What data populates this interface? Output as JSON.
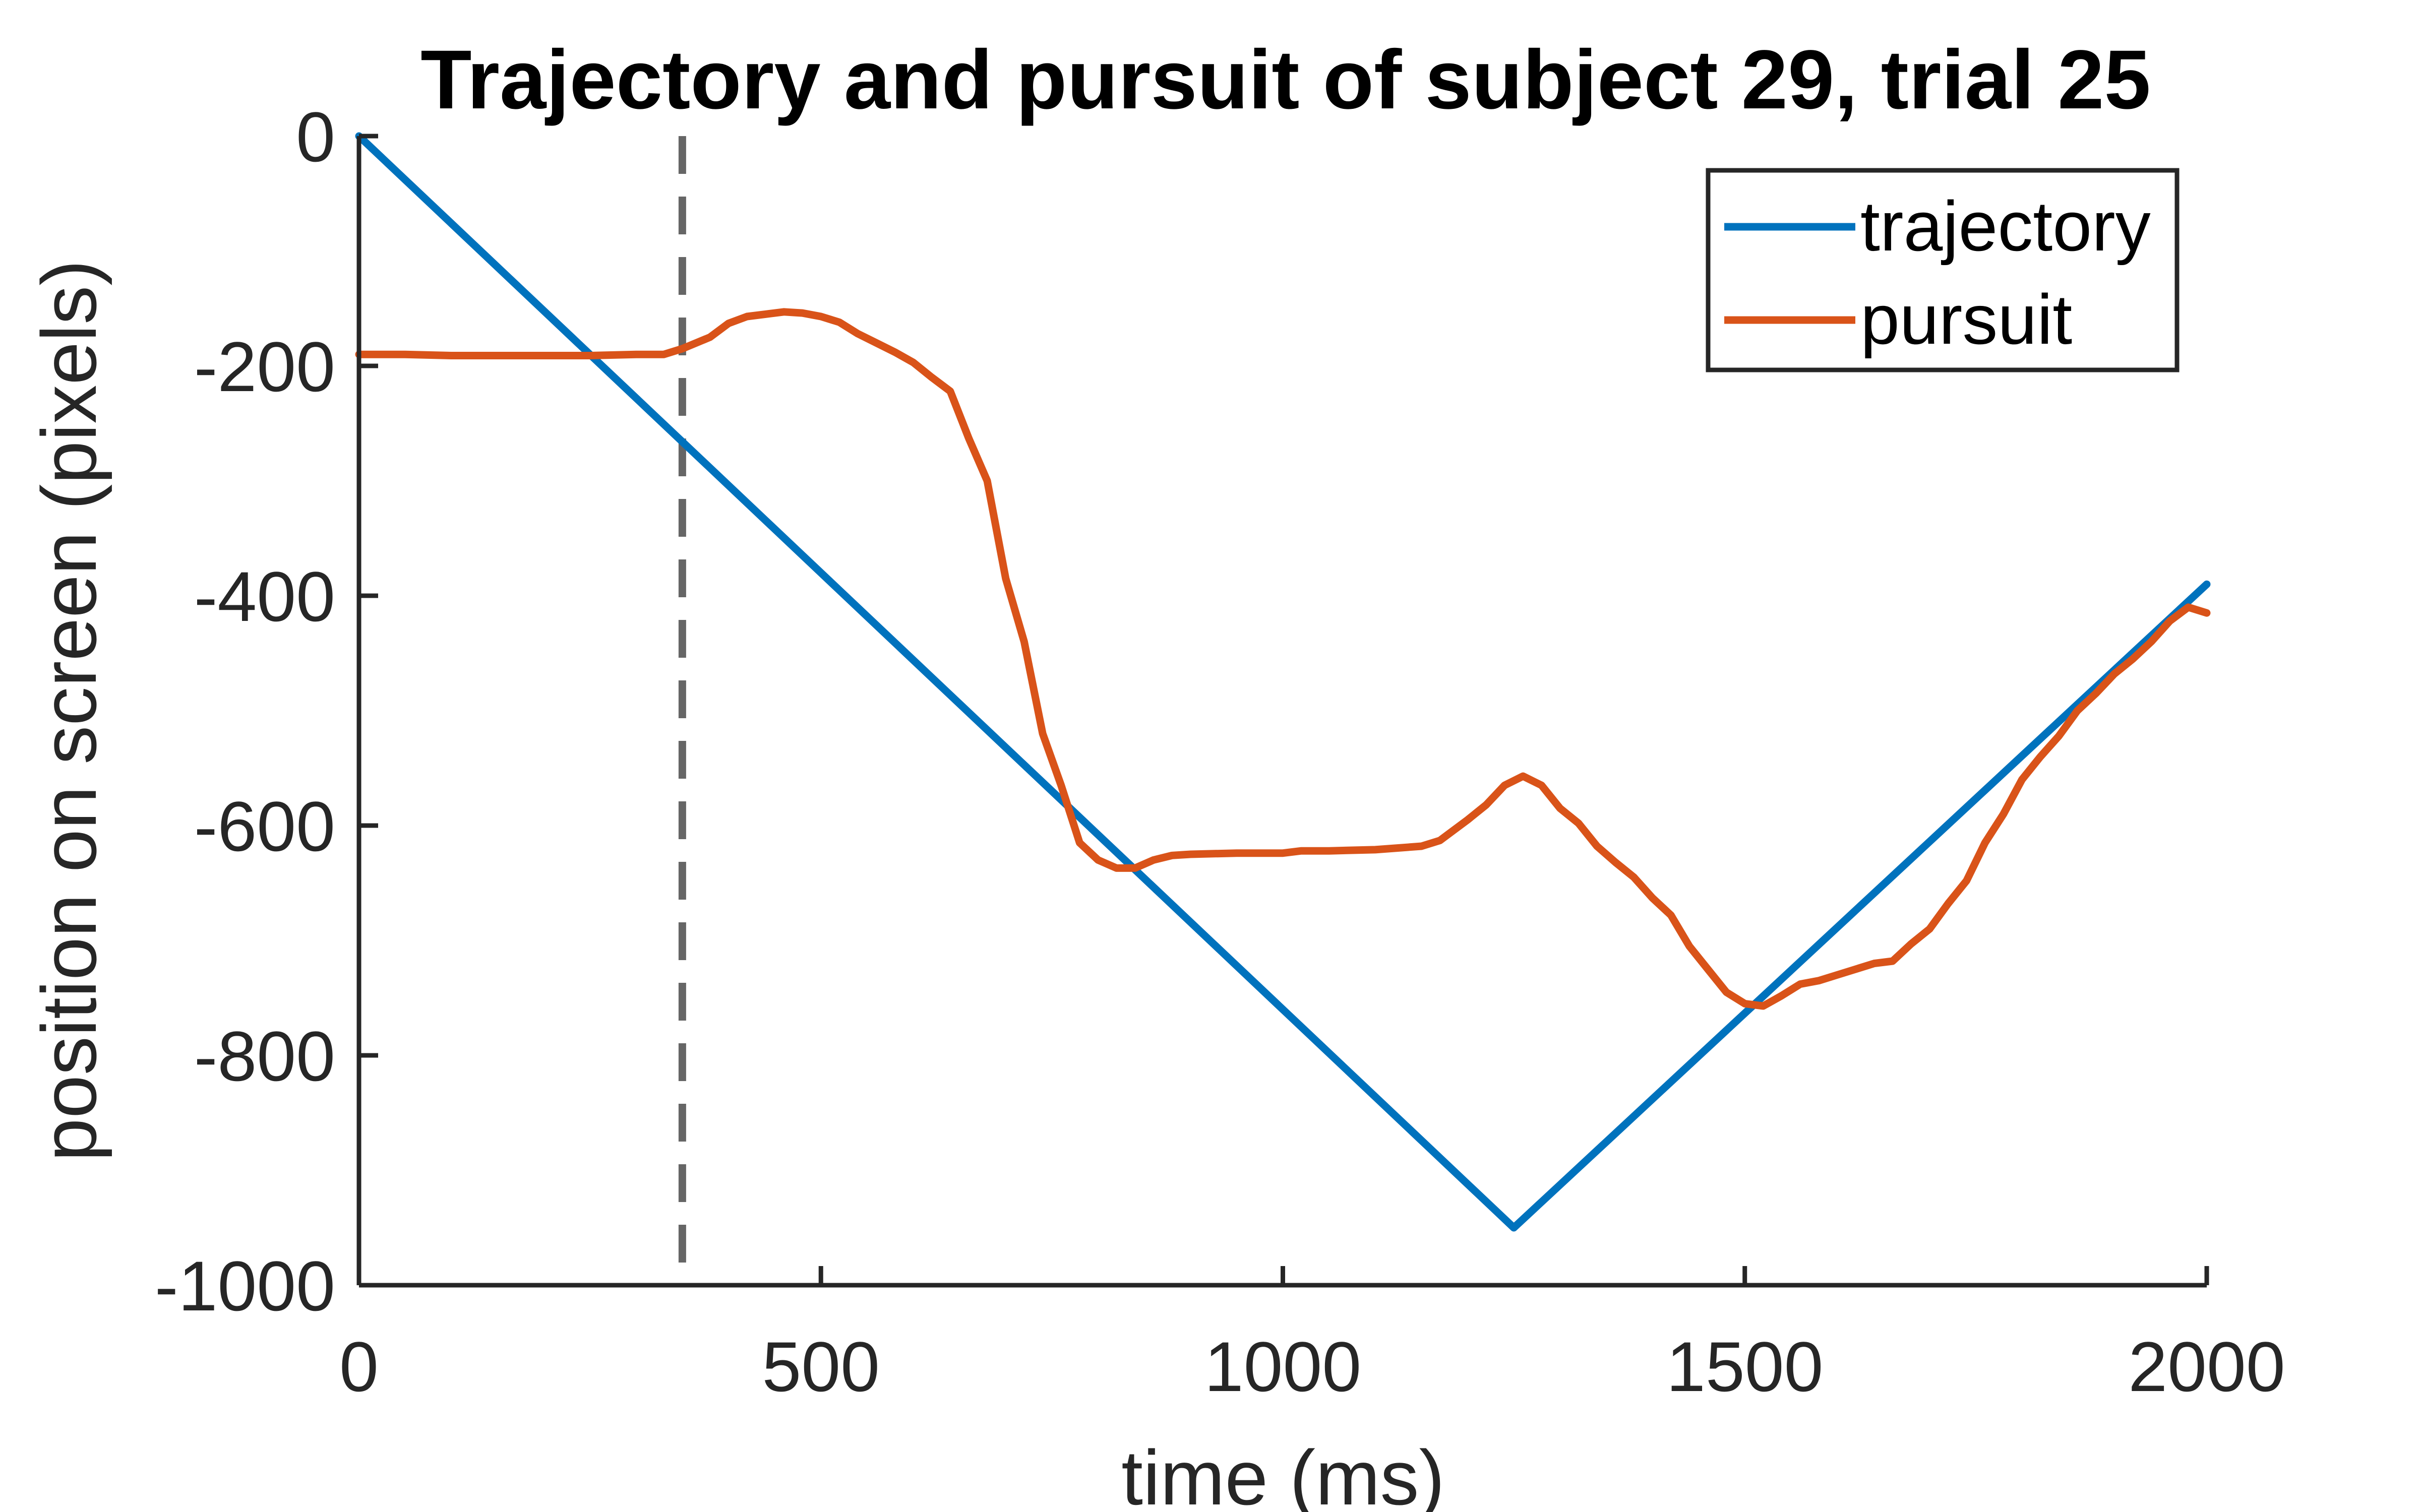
{
  "chart_data": {
    "type": "line",
    "title": "Trajectory and pursuit of subject 29, trial 25",
    "xlabel": "time (ms)",
    "ylabel": "position on screen (pixels)",
    "xlim": [
      0,
      2000
    ],
    "ylim": [
      -1000,
      0
    ],
    "xticks": [
      "0",
      "500",
      "1000",
      "1500",
      "2000"
    ],
    "xtick_values": [
      0,
      500,
      1000,
      1500,
      2000
    ],
    "yticks": [
      "0",
      "-200",
      "-400",
      "-600",
      "-800",
      "-1000"
    ],
    "ytick_values": [
      0,
      -200,
      -400,
      -600,
      -800,
      -1000
    ],
    "grid": false,
    "legend_position": "top-right",
    "vline": {
      "x": 350,
      "style": "dashed",
      "color": "#666666"
    },
    "series": [
      {
        "name": "trajectory",
        "color": "#0072BD",
        "x": [
          0,
          1250,
          2000
        ],
        "y": [
          0,
          -950,
          -390
        ]
      },
      {
        "name": "pursuit",
        "color": "#D95319",
        "x": [
          0,
          50,
          100,
          150,
          200,
          250,
          300,
          330,
          350,
          380,
          400,
          420,
          440,
          460,
          480,
          500,
          520,
          540,
          560,
          580,
          600,
          620,
          640,
          660,
          680,
          700,
          720,
          740,
          760,
          780,
          800,
          820,
          840,
          860,
          880,
          900,
          950,
          1000,
          1020,
          1050,
          1100,
          1150,
          1170,
          1200,
          1220,
          1240,
          1260,
          1280,
          1300,
          1320,
          1340,
          1360,
          1380,
          1400,
          1420,
          1440,
          1460,
          1480,
          1500,
          1520,
          1540,
          1560,
          1580,
          1600,
          1620,
          1640,
          1660,
          1680,
          1700,
          1720,
          1740,
          1760,
          1780,
          1800,
          1820,
          1840,
          1860,
          1880,
          1900,
          1920,
          1940,
          1960,
          1980,
          2000
        ],
        "y": [
          -190,
          -190,
          -191,
          -191,
          -191,
          -191,
          -190,
          -190,
          -185,
          -175,
          -163,
          -157,
          -155,
          -153,
          -154,
          -157,
          -162,
          -172,
          -180,
          -188,
          -197,
          -210,
          -222,
          -263,
          -300,
          -385,
          -440,
          -520,
          -565,
          -615,
          -630,
          -637,
          -637,
          -630,
          -626,
          -625,
          -624,
          -624,
          -622,
          -622,
          -621,
          -618,
          -613,
          -595,
          -582,
          -565,
          -557,
          -565,
          -585,
          -598,
          -618,
          -632,
          -645,
          -663,
          -678,
          -705,
          -725,
          -745,
          -755,
          -757,
          -748,
          -738,
          -735,
          -730,
          -725,
          -720,
          -718,
          -703,
          -690,
          -668,
          -648,
          -615,
          -590,
          -560,
          -540,
          -522,
          -500,
          -485,
          -468,
          -455,
          -440,
          -422,
          -410,
          -415
        ]
      }
    ]
  }
}
